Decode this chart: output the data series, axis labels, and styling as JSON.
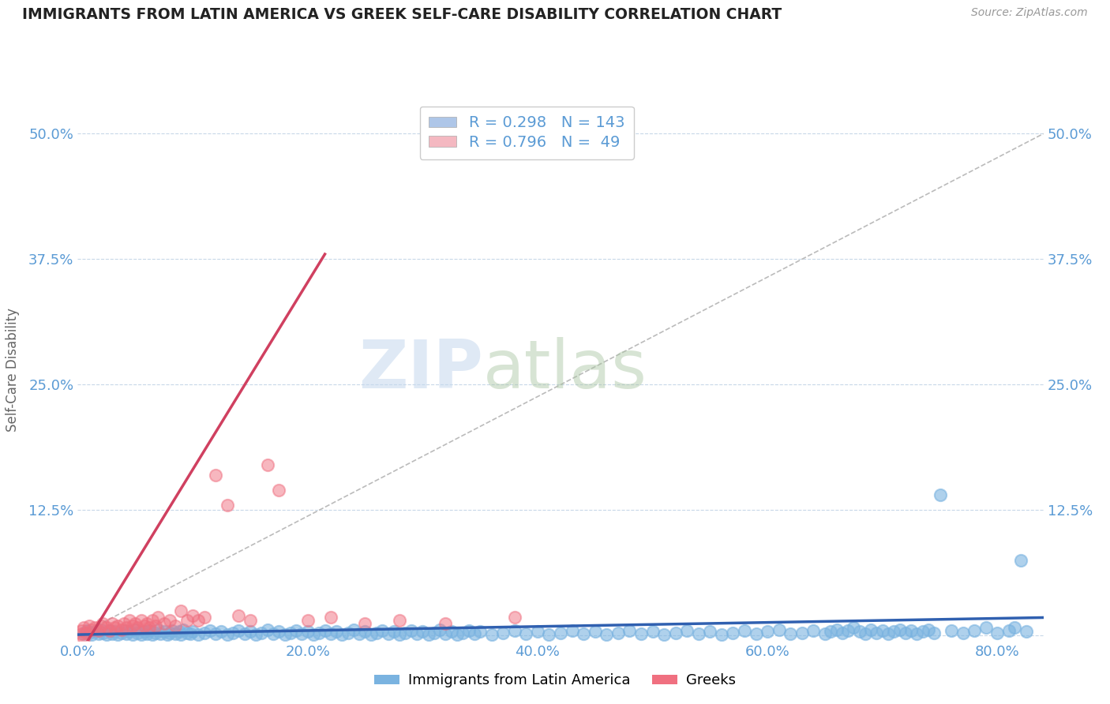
{
  "title": "IMMIGRANTS FROM LATIN AMERICA VS GREEK SELF-CARE DISABILITY CORRELATION CHART",
  "source": "Source: ZipAtlas.com",
  "ylabel": "Self-Care Disability",
  "x_tick_labels": [
    "0.0%",
    "20.0%",
    "40.0%",
    "60.0%",
    "80.0%"
  ],
  "y_tick_labels_left": [
    "12.5%",
    "25.0%",
    "37.5%",
    "50.0%"
  ],
  "y_tick_labels_right": [
    "12.5%",
    "25.0%",
    "37.5%",
    "50.0%"
  ],
  "xlim": [
    0.0,
    0.84
  ],
  "ylim": [
    -0.005,
    0.535
  ],
  "x_ticks": [
    0.0,
    0.2,
    0.4,
    0.6,
    0.8
  ],
  "y_ticks": [
    0.0,
    0.125,
    0.25,
    0.375,
    0.5
  ],
  "y_ticks_labeled": [
    0.125,
    0.25,
    0.375,
    0.5
  ],
  "legend_entries": [
    {
      "label": "Immigrants from Latin America",
      "color": "#aec6e8",
      "R": 0.298,
      "N": 143
    },
    {
      "label": "Greeks",
      "color": "#f4b8c1",
      "R": 0.796,
      "N": 49
    }
  ],
  "blue_scatter": [
    [
      0.005,
      0.002
    ],
    [
      0.008,
      0.005
    ],
    [
      0.01,
      0.003
    ],
    [
      0.012,
      0.001
    ],
    [
      0.015,
      0.004
    ],
    [
      0.018,
      0.002
    ],
    [
      0.02,
      0.006
    ],
    [
      0.022,
      0.003
    ],
    [
      0.025,
      0.001
    ],
    [
      0.028,
      0.005
    ],
    [
      0.03,
      0.002
    ],
    [
      0.032,
      0.004
    ],
    [
      0.035,
      0.001
    ],
    [
      0.038,
      0.003
    ],
    [
      0.04,
      0.005
    ],
    [
      0.042,
      0.002
    ],
    [
      0.045,
      0.004
    ],
    [
      0.048,
      0.001
    ],
    [
      0.05,
      0.006
    ],
    [
      0.052,
      0.003
    ],
    [
      0.055,
      0.001
    ],
    [
      0.058,
      0.004
    ],
    [
      0.06,
      0.002
    ],
    [
      0.062,
      0.005
    ],
    [
      0.065,
      0.001
    ],
    [
      0.068,
      0.003
    ],
    [
      0.07,
      0.006
    ],
    [
      0.072,
      0.002
    ],
    [
      0.075,
      0.004
    ],
    [
      0.078,
      0.001
    ],
    [
      0.08,
      0.003
    ],
    [
      0.082,
      0.005
    ],
    [
      0.085,
      0.002
    ],
    [
      0.088,
      0.004
    ],
    [
      0.09,
      0.001
    ],
    [
      0.092,
      0.006
    ],
    [
      0.095,
      0.003
    ],
    [
      0.098,
      0.002
    ],
    [
      0.1,
      0.004
    ],
    [
      0.105,
      0.001
    ],
    [
      0.11,
      0.003
    ],
    [
      0.115,
      0.005
    ],
    [
      0.12,
      0.002
    ],
    [
      0.125,
      0.004
    ],
    [
      0.13,
      0.001
    ],
    [
      0.135,
      0.003
    ],
    [
      0.14,
      0.005
    ],
    [
      0.145,
      0.002
    ],
    [
      0.15,
      0.004
    ],
    [
      0.155,
      0.001
    ],
    [
      0.16,
      0.003
    ],
    [
      0.165,
      0.006
    ],
    [
      0.17,
      0.002
    ],
    [
      0.175,
      0.004
    ],
    [
      0.18,
      0.001
    ],
    [
      0.185,
      0.003
    ],
    [
      0.19,
      0.005
    ],
    [
      0.195,
      0.002
    ],
    [
      0.2,
      0.004
    ],
    [
      0.205,
      0.001
    ],
    [
      0.21,
      0.003
    ],
    [
      0.215,
      0.005
    ],
    [
      0.22,
      0.002
    ],
    [
      0.225,
      0.004
    ],
    [
      0.23,
      0.001
    ],
    [
      0.235,
      0.003
    ],
    [
      0.24,
      0.006
    ],
    [
      0.245,
      0.002
    ],
    [
      0.25,
      0.004
    ],
    [
      0.255,
      0.001
    ],
    [
      0.26,
      0.003
    ],
    [
      0.265,
      0.005
    ],
    [
      0.27,
      0.002
    ],
    [
      0.275,
      0.004
    ],
    [
      0.28,
      0.001
    ],
    [
      0.285,
      0.003
    ],
    [
      0.29,
      0.005
    ],
    [
      0.295,
      0.002
    ],
    [
      0.3,
      0.004
    ],
    [
      0.305,
      0.001
    ],
    [
      0.31,
      0.003
    ],
    [
      0.315,
      0.006
    ],
    [
      0.32,
      0.002
    ],
    [
      0.325,
      0.004
    ],
    [
      0.33,
      0.001
    ],
    [
      0.335,
      0.003
    ],
    [
      0.34,
      0.005
    ],
    [
      0.345,
      0.002
    ],
    [
      0.35,
      0.004
    ],
    [
      0.36,
      0.001
    ],
    [
      0.37,
      0.003
    ],
    [
      0.38,
      0.005
    ],
    [
      0.39,
      0.002
    ],
    [
      0.4,
      0.004
    ],
    [
      0.41,
      0.001
    ],
    [
      0.42,
      0.003
    ],
    [
      0.43,
      0.005
    ],
    [
      0.44,
      0.002
    ],
    [
      0.45,
      0.004
    ],
    [
      0.46,
      0.001
    ],
    [
      0.47,
      0.003
    ],
    [
      0.48,
      0.005
    ],
    [
      0.49,
      0.002
    ],
    [
      0.5,
      0.004
    ],
    [
      0.51,
      0.001
    ],
    [
      0.52,
      0.003
    ],
    [
      0.53,
      0.005
    ],
    [
      0.54,
      0.002
    ],
    [
      0.55,
      0.004
    ],
    [
      0.56,
      0.001
    ],
    [
      0.57,
      0.003
    ],
    [
      0.58,
      0.005
    ],
    [
      0.59,
      0.002
    ],
    [
      0.6,
      0.004
    ],
    [
      0.61,
      0.006
    ],
    [
      0.62,
      0.002
    ],
    [
      0.63,
      0.003
    ],
    [
      0.64,
      0.005
    ],
    [
      0.65,
      0.002
    ],
    [
      0.655,
      0.004
    ],
    [
      0.66,
      0.006
    ],
    [
      0.665,
      0.003
    ],
    [
      0.67,
      0.005
    ],
    [
      0.675,
      0.008
    ],
    [
      0.68,
      0.004
    ],
    [
      0.685,
      0.002
    ],
    [
      0.69,
      0.006
    ],
    [
      0.695,
      0.003
    ],
    [
      0.7,
      0.005
    ],
    [
      0.705,
      0.002
    ],
    [
      0.71,
      0.004
    ],
    [
      0.715,
      0.006
    ],
    [
      0.72,
      0.003
    ],
    [
      0.725,
      0.005
    ],
    [
      0.73,
      0.002
    ],
    [
      0.735,
      0.004
    ],
    [
      0.74,
      0.006
    ],
    [
      0.745,
      0.003
    ],
    [
      0.75,
      0.14
    ],
    [
      0.76,
      0.005
    ],
    [
      0.77,
      0.003
    ],
    [
      0.78,
      0.005
    ],
    [
      0.79,
      0.008
    ],
    [
      0.8,
      0.003
    ],
    [
      0.81,
      0.005
    ],
    [
      0.815,
      0.008
    ],
    [
      0.82,
      0.075
    ],
    [
      0.825,
      0.004
    ]
  ],
  "pink_scatter": [
    [
      0.003,
      0.005
    ],
    [
      0.005,
      0.008
    ],
    [
      0.007,
      0.003
    ],
    [
      0.01,
      0.01
    ],
    [
      0.012,
      0.006
    ],
    [
      0.015,
      0.008
    ],
    [
      0.018,
      0.005
    ],
    [
      0.02,
      0.01
    ],
    [
      0.022,
      0.012
    ],
    [
      0.025,
      0.008
    ],
    [
      0.028,
      0.005
    ],
    [
      0.03,
      0.012
    ],
    [
      0.032,
      0.008
    ],
    [
      0.035,
      0.01
    ],
    [
      0.038,
      0.006
    ],
    [
      0.04,
      0.012
    ],
    [
      0.042,
      0.008
    ],
    [
      0.045,
      0.015
    ],
    [
      0.048,
      0.01
    ],
    [
      0.05,
      0.012
    ],
    [
      0.052,
      0.008
    ],
    [
      0.055,
      0.015
    ],
    [
      0.058,
      0.01
    ],
    [
      0.06,
      0.012
    ],
    [
      0.062,
      0.008
    ],
    [
      0.065,
      0.015
    ],
    [
      0.068,
      0.01
    ],
    [
      0.07,
      0.018
    ],
    [
      0.075,
      0.012
    ],
    [
      0.08,
      0.015
    ],
    [
      0.085,
      0.01
    ],
    [
      0.09,
      0.025
    ],
    [
      0.095,
      0.015
    ],
    [
      0.1,
      0.02
    ],
    [
      0.105,
      0.015
    ],
    [
      0.11,
      0.018
    ],
    [
      0.12,
      0.16
    ],
    [
      0.13,
      0.13
    ],
    [
      0.14,
      0.02
    ],
    [
      0.15,
      0.015
    ],
    [
      0.165,
      0.17
    ],
    [
      0.175,
      0.145
    ],
    [
      0.2,
      0.015
    ],
    [
      0.22,
      0.018
    ],
    [
      0.25,
      0.012
    ],
    [
      0.28,
      0.015
    ],
    [
      0.32,
      0.012
    ],
    [
      0.38,
      0.018
    ],
    [
      0.003,
      0.002
    ],
    [
      0.005,
      -0.003
    ]
  ],
  "blue_line": {
    "x": [
      0.0,
      0.84
    ],
    "y": [
      0.001,
      0.018
    ]
  },
  "pink_line": {
    "x": [
      -0.01,
      0.215
    ],
    "y": [
      -0.04,
      0.38
    ]
  },
  "dashed_line": {
    "x": [
      0.0,
      0.84
    ],
    "y": [
      0.0,
      0.5
    ]
  },
  "watermark_zip": "ZIP",
  "watermark_atlas": "atlas",
  "title_color": "#222222",
  "axis_color": "#5b9bd5",
  "grid_color": "#c8d8e8",
  "scatter_blue_color": "#7ab3e0",
  "scatter_pink_color": "#f07080",
  "line_blue_color": "#3060b0",
  "line_pink_color": "#d04060",
  "line_dashed_color": "#bbbbbb"
}
